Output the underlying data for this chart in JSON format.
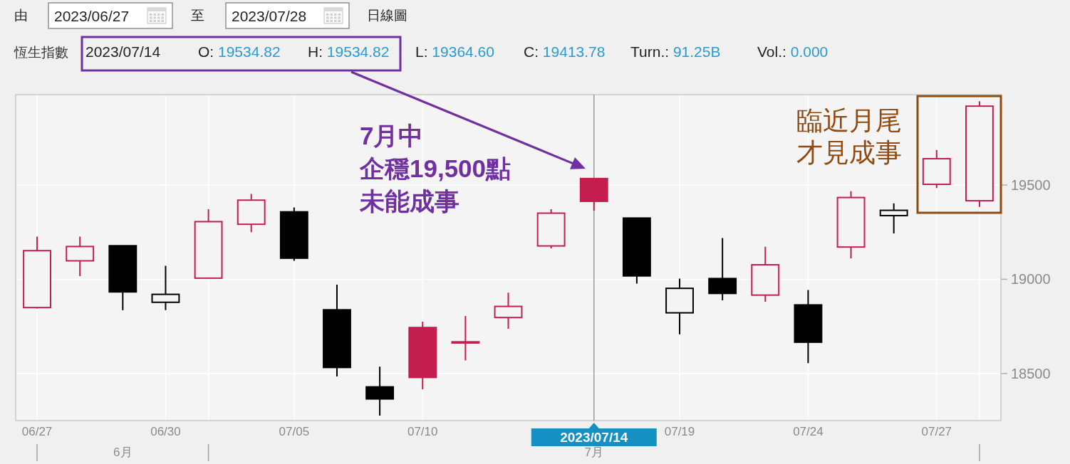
{
  "chart_data": {
    "type": "candlestick",
    "title": "恆生指數",
    "categories": [
      "06/27",
      null,
      null,
      "06/30",
      null,
      null,
      "07/05",
      null,
      null,
      "07/10",
      null,
      null,
      null,
      "2023/07/14",
      null,
      "07/19",
      null,
      null,
      "07/24",
      null,
      null,
      "07/27",
      null
    ],
    "ohlc": [
      [
        18850,
        19226,
        18845,
        19152
      ],
      [
        19098,
        19226,
        19017,
        19174
      ],
      [
        19178,
        19178,
        18836,
        18933
      ],
      [
        18878,
        19072,
        18836,
        18920
      ],
      [
        19006,
        19372,
        19006,
        19306
      ],
      [
        19292,
        19453,
        19250,
        19420
      ],
      [
        19358,
        19381,
        19098,
        19112
      ],
      [
        18838,
        18971,
        18484,
        18532
      ],
      [
        18429,
        18536,
        18276,
        18365
      ],
      [
        18744,
        18775,
        18416,
        18479
      ],
      [
        18662,
        18805,
        18569,
        18668
      ],
      [
        18797,
        18929,
        18737,
        18856
      ],
      [
        19177,
        19372,
        19164,
        19351
      ],
      [
        19534.82,
        19534.82,
        19364.6,
        19413.78
      ],
      [
        19325,
        19325,
        18977,
        19018
      ],
      [
        18822,
        19004,
        18708,
        18952
      ],
      [
        19004,
        19219,
        18888,
        18925
      ],
      [
        18916,
        19173,
        18881,
        19077
      ],
      [
        18864,
        18943,
        18555,
        18666
      ],
      [
        19171,
        19467,
        19111,
        19434
      ],
      [
        19338,
        19403,
        19243,
        19366
      ],
      [
        19504,
        19686,
        19484,
        19640
      ],
      [
        19417,
        19945,
        19384,
        19919
      ]
    ],
    "colors": [
      "#c41e50",
      "#c41e50",
      "#000000",
      "#000000",
      "#c41e50",
      "#c41e50",
      "#000000",
      "#000000",
      "#000000",
      "#c41e50",
      "#c41e50",
      "#c41e50",
      "#c41e50",
      "#c41e50",
      "#000000",
      "#000000",
      "#000000",
      "#c41e50",
      "#000000",
      "#c41e50",
      "#000000",
      "#c41e50",
      "#c41e50"
    ],
    "ylim": [
      18250,
      19980
    ],
    "yticks": [
      18500,
      19000,
      19500
    ],
    "grid": true,
    "ref_lines": [
      {
        "axis": "x",
        "value": "2023/07/14",
        "color": "#999999"
      }
    ],
    "annotations": [
      "由",
      "2023/06/27",
      "至",
      "2023/07/28",
      "日線圖",
      "O: 19534.82",
      "H: 19534.82",
      "L: 19364.60",
      "C: 19413.78",
      "Turn.: 91.25B",
      "Vol.: 0.000",
      "7月中",
      "企穩19,500點",
      "未能成事",
      "臨近月尾",
      "才見成事",
      "6月",
      "7月"
    ]
  }
}
